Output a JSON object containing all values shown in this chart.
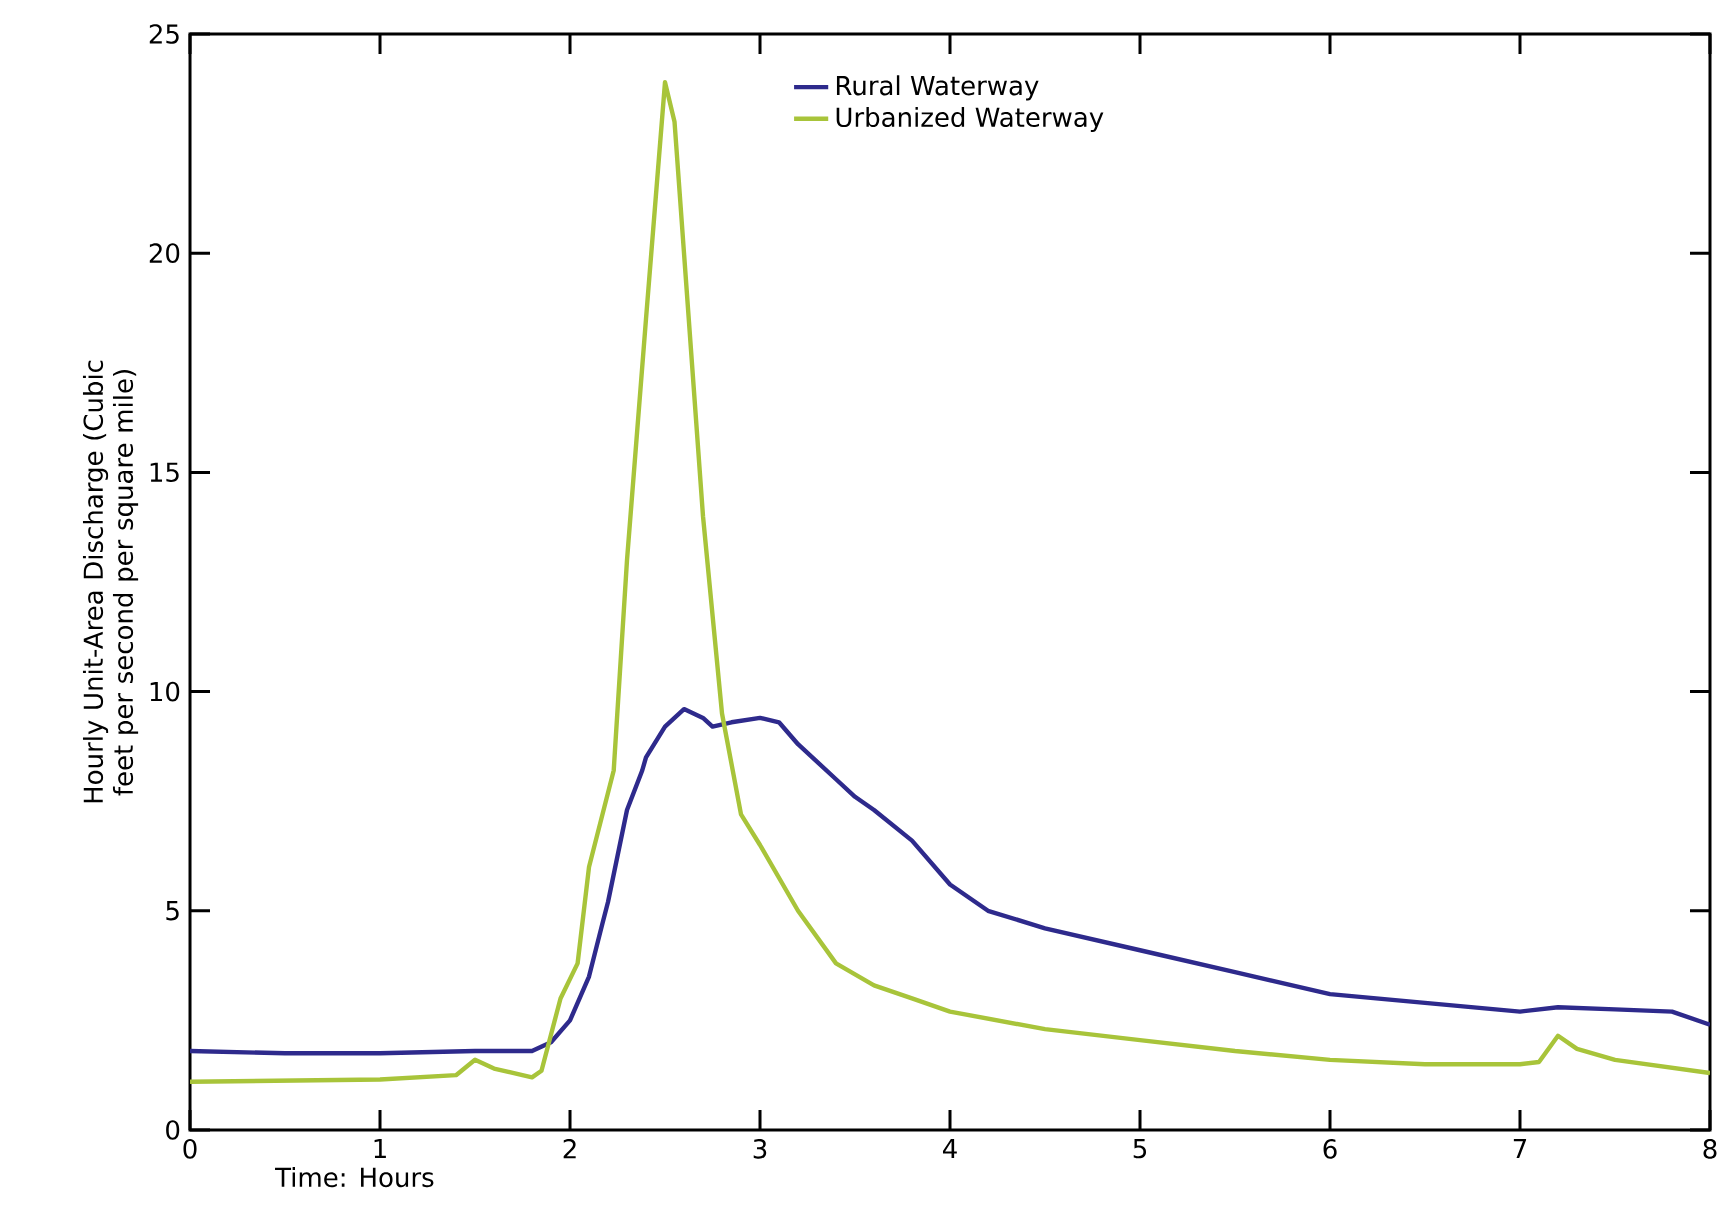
{
  "chart_data": {
    "type": "line",
    "xlabel": "Time: Hours",
    "ylabel": "Hourly Unit-Area Discharge (Cubic feet per second per square mile)",
    "xlim": [
      0,
      8
    ],
    "ylim": [
      0,
      25
    ],
    "xticks": [
      0,
      1,
      2,
      3,
      4,
      5,
      6,
      7,
      8
    ],
    "yticks": [
      0,
      5,
      10,
      15,
      20,
      25
    ],
    "grid": false,
    "legend": "top",
    "marker": "none",
    "line_style": "solid",
    "series": [
      {
        "name": "Rural Waterway",
        "color": "#2e2a8c",
        "x": [
          0,
          0.5,
          1,
          1.5,
          1.8,
          1.9,
          2.0,
          2.1,
          2.17,
          2.2,
          2.3,
          2.38,
          2.4,
          2.5,
          2.6,
          2.7,
          2.75,
          2.85,
          3.0,
          3.1,
          3.2,
          3.4,
          3.5,
          3.6,
          3.8,
          4.0,
          4.2,
          4.5,
          5.0,
          5.5,
          6.0,
          6.5,
          7.0,
          7.2,
          7.5,
          7.8,
          8.0
        ],
        "values": [
          1.8,
          1.75,
          1.75,
          1.8,
          1.8,
          2.0,
          2.5,
          3.5,
          4.7,
          5.2,
          7.3,
          8.2,
          8.5,
          9.2,
          9.6,
          9.4,
          9.2,
          9.3,
          9.4,
          9.3,
          8.8,
          8.0,
          7.6,
          7.3,
          6.6,
          5.6,
          5.0,
          4.6,
          4.1,
          3.6,
          3.1,
          2.9,
          2.7,
          2.8,
          2.75,
          2.7,
          2.4
        ]
      },
      {
        "name": "Urbanized Waterway",
        "color": "#a8c43a",
        "x": [
          0,
          1,
          1.4,
          1.5,
          1.6,
          1.8,
          1.85,
          1.95,
          2.04,
          2.1,
          2.23,
          2.3,
          2.4,
          2.5,
          2.55,
          2.6,
          2.7,
          2.8,
          2.9,
          3.0,
          3.2,
          3.4,
          3.6,
          3.8,
          4.0,
          4.5,
          5.0,
          5.5,
          6.0,
          6.5,
          7.0,
          7.1,
          7.2,
          7.3,
          7.5,
          8.0
        ],
        "values": [
          1.1,
          1.15,
          1.25,
          1.6,
          1.4,
          1.2,
          1.35,
          3.0,
          3.8,
          6.0,
          8.2,
          13,
          18.5,
          23.9,
          23.0,
          20,
          14,
          9.5,
          7.2,
          6.5,
          5.0,
          3.8,
          3.3,
          3.0,
          2.7,
          2.3,
          2.05,
          1.8,
          1.6,
          1.5,
          1.5,
          1.55,
          2.15,
          1.85,
          1.6,
          1.3
        ]
      }
    ]
  }
}
